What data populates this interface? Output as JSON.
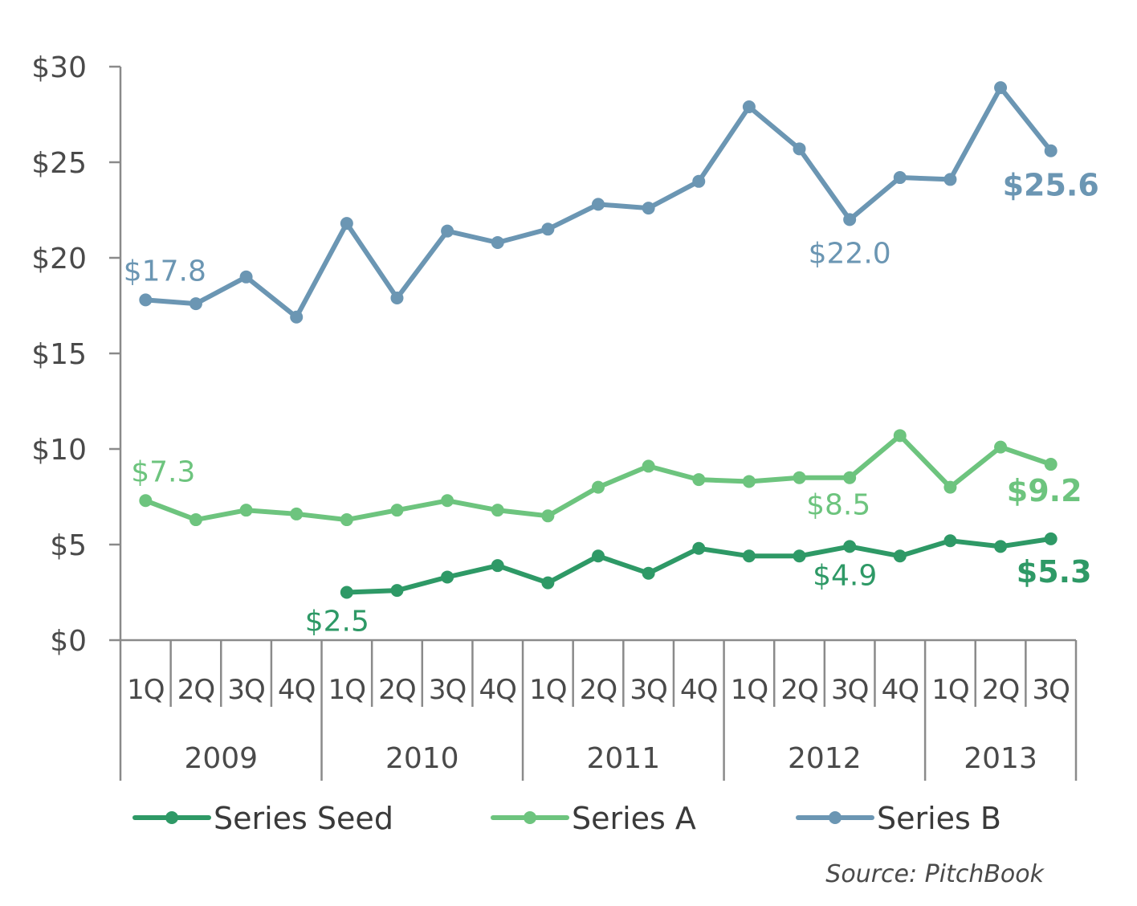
{
  "chart_data": {
    "type": "line",
    "y_ticks": [
      "$0",
      "$5",
      "$10",
      "$15",
      "$20",
      "$25",
      "$30"
    ],
    "y_tick_values": [
      0,
      5,
      10,
      15,
      20,
      25,
      30
    ],
    "ylim": [
      0,
      30
    ],
    "quarters": [
      "1Q",
      "2Q",
      "3Q",
      "4Q",
      "1Q",
      "2Q",
      "3Q",
      "4Q",
      "1Q",
      "2Q",
      "3Q",
      "4Q",
      "1Q",
      "2Q",
      "3Q",
      "4Q",
      "1Q",
      "2Q",
      "3Q"
    ],
    "years": [
      {
        "label": "2009",
        "quarters": 4
      },
      {
        "label": "2010",
        "quarters": 4
      },
      {
        "label": "2011",
        "quarters": 4
      },
      {
        "label": "2012",
        "quarters": 4
      },
      {
        "label": "2013",
        "quarters": 3
      }
    ],
    "series": [
      {
        "name": "Series Seed",
        "color": "#2e9966",
        "values": [
          null,
          null,
          null,
          null,
          2.5,
          2.6,
          3.3,
          3.9,
          3.0,
          4.4,
          3.5,
          4.8,
          4.4,
          4.4,
          4.9,
          4.4,
          5.2,
          4.9,
          5.3
        ],
        "labels": [
          {
            "index": 4,
            "text": "$2.5",
            "bold": false
          },
          {
            "index": 14,
            "text": "$4.9",
            "bold": false
          },
          {
            "index": 18,
            "text": "$5.3",
            "bold": true
          }
        ]
      },
      {
        "name": "Series A",
        "color": "#6dc47e",
        "values": [
          7.3,
          6.3,
          6.8,
          6.6,
          6.3,
          6.8,
          7.3,
          6.8,
          6.5,
          8.0,
          9.1,
          8.4,
          8.3,
          8.5,
          8.5,
          10.7,
          8.0,
          10.1,
          9.2
        ],
        "labels": [
          {
            "index": 0,
            "text": "$7.3",
            "bold": false
          },
          {
            "index": 14,
            "text": "$8.5",
            "bold": false
          },
          {
            "index": 18,
            "text": "$9.2",
            "bold": true
          }
        ]
      },
      {
        "name": "Series B",
        "color": "#6b96b3",
        "values": [
          17.8,
          17.6,
          19.0,
          16.9,
          21.8,
          17.9,
          21.4,
          20.8,
          21.5,
          22.8,
          22.6,
          24.0,
          27.9,
          25.7,
          22.0,
          24.2,
          24.1,
          28.9,
          25.6
        ],
        "labels": [
          {
            "index": 0,
            "text": "$17.8",
            "bold": false
          },
          {
            "index": 14,
            "text": "$22.0",
            "bold": false
          },
          {
            "index": 18,
            "text": "$25.6",
            "bold": true
          }
        ]
      }
    ],
    "legend_position": "bottom",
    "grid": false
  },
  "source": "Source: PitchBook"
}
